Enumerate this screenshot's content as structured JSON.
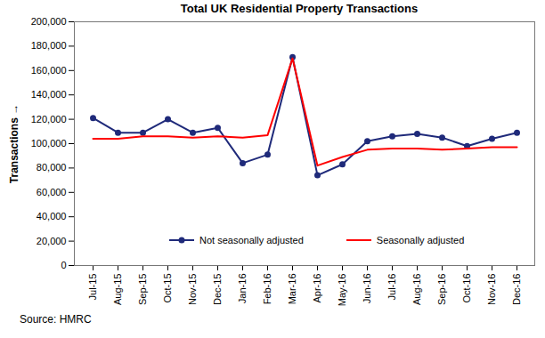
{
  "chart_data": {
    "type": "line",
    "title": "Total UK Residential Property Transactions",
    "y_label": "Transactions",
    "caption": "Source: HMRC",
    "categories": [
      "Jul-15",
      "Aug-15",
      "Sep-15",
      "Oct-15",
      "Nov-15",
      "Dec-15",
      "Jan-16",
      "Feb-16",
      "Mar-16",
      "Apr-16",
      "May-16",
      "Jun-16",
      "Jul-16",
      "Aug-16",
      "Sep-16",
      "Oct-16",
      "Nov-16",
      "Dec-16"
    ],
    "series": [
      {
        "name": "Not seasonally adjusted",
        "color": "#1f2a7a",
        "marker": "circle",
        "values": [
          121000,
          109000,
          109000,
          120000,
          109000,
          113000,
          84000,
          91000,
          171000,
          74000,
          83000,
          102000,
          106000,
          108000,
          105000,
          98000,
          104000,
          109000
        ]
      },
      {
        "name": "Seasonally adjusted",
        "color": "#ff0000",
        "values": [
          104000,
          104000,
          106000,
          106000,
          105000,
          106000,
          105000,
          107000,
          170000,
          82000,
          89000,
          95000,
          96000,
          96000,
          95000,
          96000,
          97000,
          97000
        ]
      }
    ],
    "ylim": [
      0,
      200000
    ],
    "yticks": [
      0,
      {
        "value": 20000,
        "label": "20,000"
      },
      {
        "value": 40000,
        "label": "40,000"
      },
      {
        "value": 60000,
        "label": "60,000"
      },
      {
        "value": 80000,
        "label": "80,000"
      },
      {
        "value": 100000,
        "label": "100,000"
      },
      {
        "value": 120000,
        "label": "120,000"
      },
      {
        "value": 140000,
        "label": "140,000"
      },
      {
        "value": 160000,
        "label": "160,000"
      },
      {
        "value": 180000,
        "label": "180,000"
      },
      {
        "value": 200000,
        "label": "200,000"
      }
    ],
    "grid": false,
    "legend": "bottom"
  }
}
